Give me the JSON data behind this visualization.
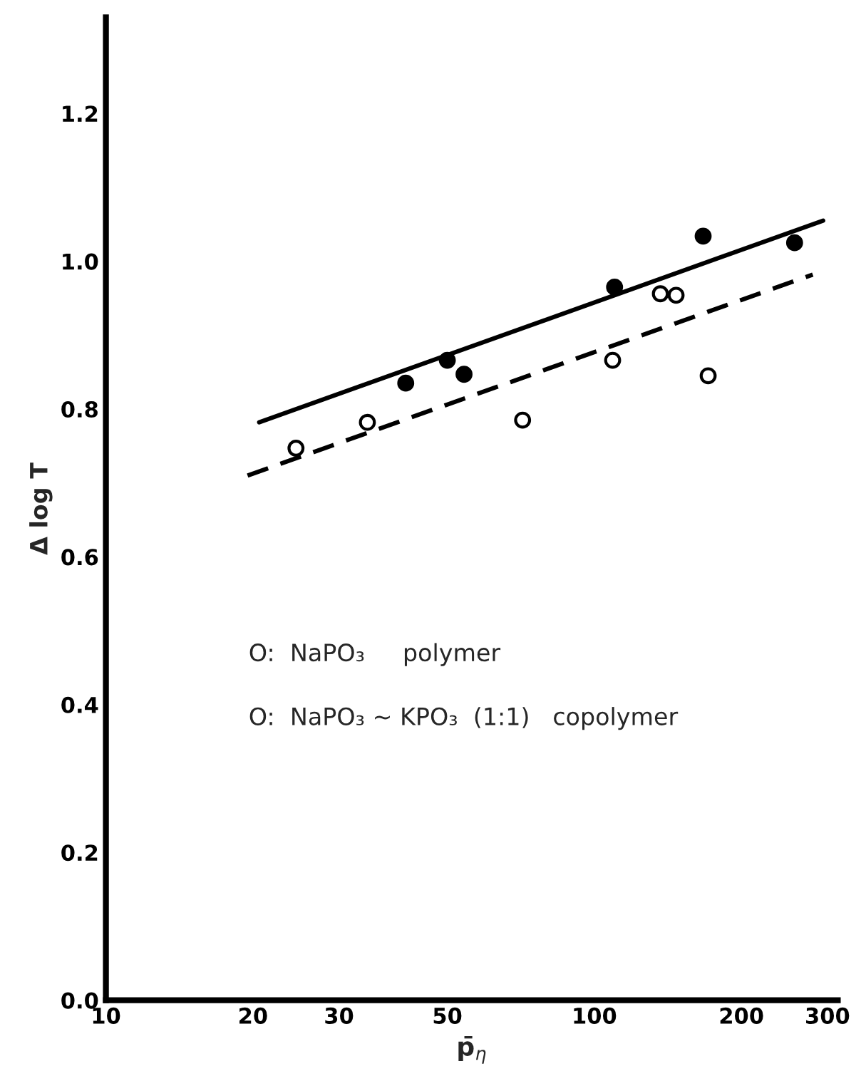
{
  "chart_data": {
    "type": "scatter",
    "xlabel": "p̄$_{η}$",
    "ylabel": "Δ log T",
    "log": "x",
    "xlim": [
      10,
      315
    ],
    "ylim": [
      0,
      1.33
    ],
    "xticks": [
      10,
      20,
      30,
      50,
      100,
      200,
      300
    ],
    "yticks": [
      {
        "value": 0,
        "label": "0.0"
      },
      0.2,
      0.4,
      0.6,
      0.8,
      {
        "value": 1.0,
        "label": "1.0"
      },
      1.2
    ],
    "grid": false,
    "series": [
      {
        "marker": "circle",
        "color": "#000000",
        "x": [
          41.1,
          50,
          54.1,
          110,
          167,
          257
        ],
        "values": [
          0.835,
          0.866,
          0.847,
          0.965,
          1.034,
          1.025
        ]
      },
      {
        "marker": "circle",
        "color": "#ffffff",
        "x": [
          24.5,
          34.3,
          71.3,
          109,
          136.5,
          147,
          171
        ],
        "values": [
          0.747,
          0.782,
          0.785,
          0.866,
          0.956,
          0.954,
          0.845
        ]
      },
      {
        "type": "line",
        "color": "#000000",
        "line_style": "solid",
        "x": [
          20.6,
          294
        ],
        "values": [
          0.782,
          1.055
        ]
      },
      {
        "type": "line",
        "color": "#000000",
        "line_style": "dashed",
        "x": [
          19.5,
          280
        ],
        "values": [
          0.71,
          0.982
        ]
      }
    ],
    "annotations": [
      "O:  NaPO₃     polymer",
      "O:  NaPO₃ ~ KPO₃  (1:1)   copolymer"
    ]
  }
}
